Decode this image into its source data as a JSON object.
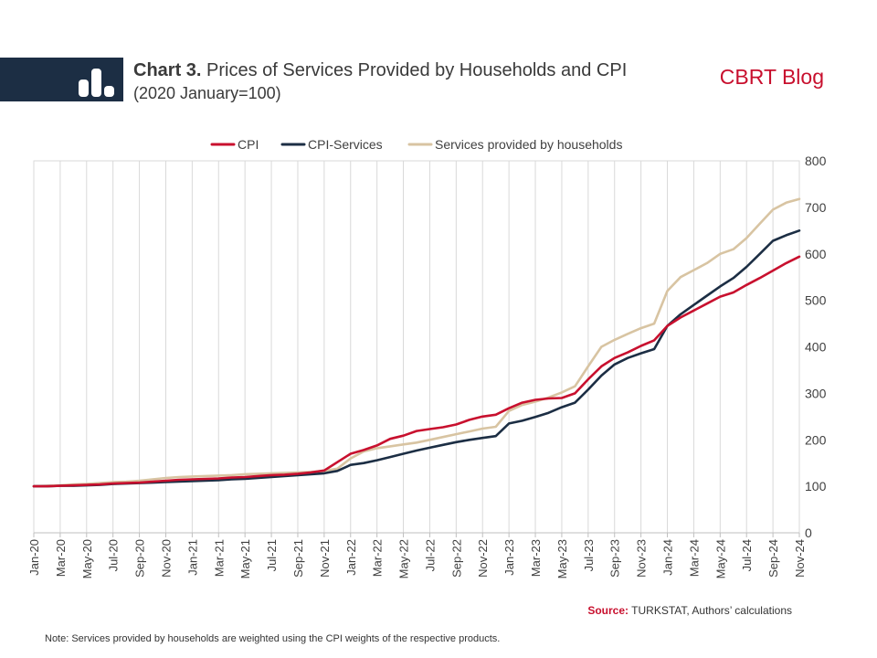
{
  "header": {
    "chart_number": "Chart 3.",
    "title": "Prices of Services Provided by Households and CPI",
    "subtitle": "(2020 January=100)",
    "brand": "CBRT Blog"
  },
  "footer": {
    "source_label": "Source:",
    "source_text": "TURKSTAT, Authors’ calculations",
    "note": "Note: Services provided by households are weighted using the CPI weights of the respective products."
  },
  "colors": {
    "cpi": "#c8102e",
    "cpi_services": "#1c2e44",
    "households": "#d8c4a2",
    "grid": "#d9d9d9",
    "text": "#404040"
  },
  "chart_data": {
    "type": "line",
    "title": "Prices of Services Provided by Households and CPI",
    "subtitle": "(2020 January=100)",
    "xlabel": "",
    "ylabel": "",
    "ylim": [
      0,
      800
    ],
    "yticks": [
      0,
      100,
      200,
      300,
      400,
      500,
      600,
      700,
      800
    ],
    "y_axis_side": "right",
    "grid": "vertical",
    "legend_position": "top",
    "x": [
      "Jan-20",
      "Feb-20",
      "Mar-20",
      "Apr-20",
      "May-20",
      "Jun-20",
      "Jul-20",
      "Aug-20",
      "Sep-20",
      "Oct-20",
      "Nov-20",
      "Dec-20",
      "Jan-21",
      "Feb-21",
      "Mar-21",
      "Apr-21",
      "May-21",
      "Jun-21",
      "Jul-21",
      "Aug-21",
      "Sep-21",
      "Oct-21",
      "Nov-21",
      "Dec-21",
      "Jan-22",
      "Feb-22",
      "Mar-22",
      "Apr-22",
      "May-22",
      "Jun-22",
      "Jul-22",
      "Aug-22",
      "Sep-22",
      "Oct-22",
      "Nov-22",
      "Dec-22",
      "Jan-23",
      "Feb-23",
      "Mar-23",
      "Apr-23",
      "May-23",
      "Jun-23",
      "Jul-23",
      "Aug-23",
      "Sep-23",
      "Oct-23",
      "Nov-23",
      "Dec-23",
      "Jan-24",
      "Feb-24",
      "Mar-24",
      "Apr-24",
      "May-24",
      "Jun-24",
      "Jul-24",
      "Aug-24",
      "Sep-24",
      "Oct-24",
      "Nov-24"
    ],
    "x_tick_labels": [
      "Jan-20",
      "Mar-20",
      "May-20",
      "Jul-20",
      "Sep-20",
      "Nov-20",
      "Jan-21",
      "Mar-21",
      "May-21",
      "Jul-21",
      "Sep-21",
      "Nov-21",
      "Jan-22",
      "Mar-22",
      "May-22",
      "Jul-22",
      "Sep-22",
      "Nov-22",
      "Jan-23",
      "Mar-23",
      "May-23",
      "Jul-23",
      "Sep-23",
      "Nov-23",
      "Jan-24",
      "Mar-24",
      "May-24",
      "Jul-24",
      "Sep-24",
      "Nov-24"
    ],
    "series": [
      {
        "name": "CPI",
        "color": "#c8102e",
        "values": [
          100,
          100,
          101,
          102,
          103,
          104,
          106,
          107,
          108,
          110,
          112,
          114,
          115,
          116,
          117,
          119,
          120,
          122,
          124,
          125,
          127,
          130,
          134,
          152,
          170,
          178,
          188,
          202,
          209,
          219,
          223,
          227,
          233,
          243,
          250,
          254,
          268,
          280,
          286,
          289,
          290,
          300,
          330,
          358,
          376,
          388,
          402,
          414,
          445,
          463,
          478,
          493,
          508,
          517,
          533,
          548,
          564,
          580,
          594
        ]
      },
      {
        "name": "CPI-Services",
        "color": "#1c2e44",
        "values": [
          100,
          100,
          101,
          101,
          102,
          103,
          105,
          106,
          107,
          108,
          109,
          110,
          111,
          112,
          113,
          115,
          116,
          118,
          120,
          122,
          124,
          126,
          128,
          133,
          146,
          150,
          156,
          163,
          170,
          177,
          183,
          189,
          195,
          200,
          204,
          208,
          235,
          241,
          249,
          258,
          270,
          280,
          308,
          338,
          362,
          376,
          386,
          395,
          445,
          470,
          490,
          510,
          530,
          548,
          572,
          600,
          628,
          640,
          650
        ]
      },
      {
        "name": "Services provided by households",
        "color": "#d8c4a2",
        "values": [
          100,
          101,
          102,
          104,
          105,
          107,
          109,
          110,
          112,
          115,
          118,
          120,
          121,
          122,
          123,
          124,
          126,
          127,
          128,
          129,
          130,
          131,
          133,
          138,
          160,
          175,
          182,
          186,
          190,
          194,
          200,
          206,
          212,
          218,
          224,
          228,
          262,
          275,
          282,
          291,
          302,
          315,
          358,
          400,
          415,
          428,
          440,
          450,
          520,
          550,
          565,
          580,
          600,
          610,
          634,
          665,
          695,
          710,
          718
        ]
      }
    ]
  }
}
